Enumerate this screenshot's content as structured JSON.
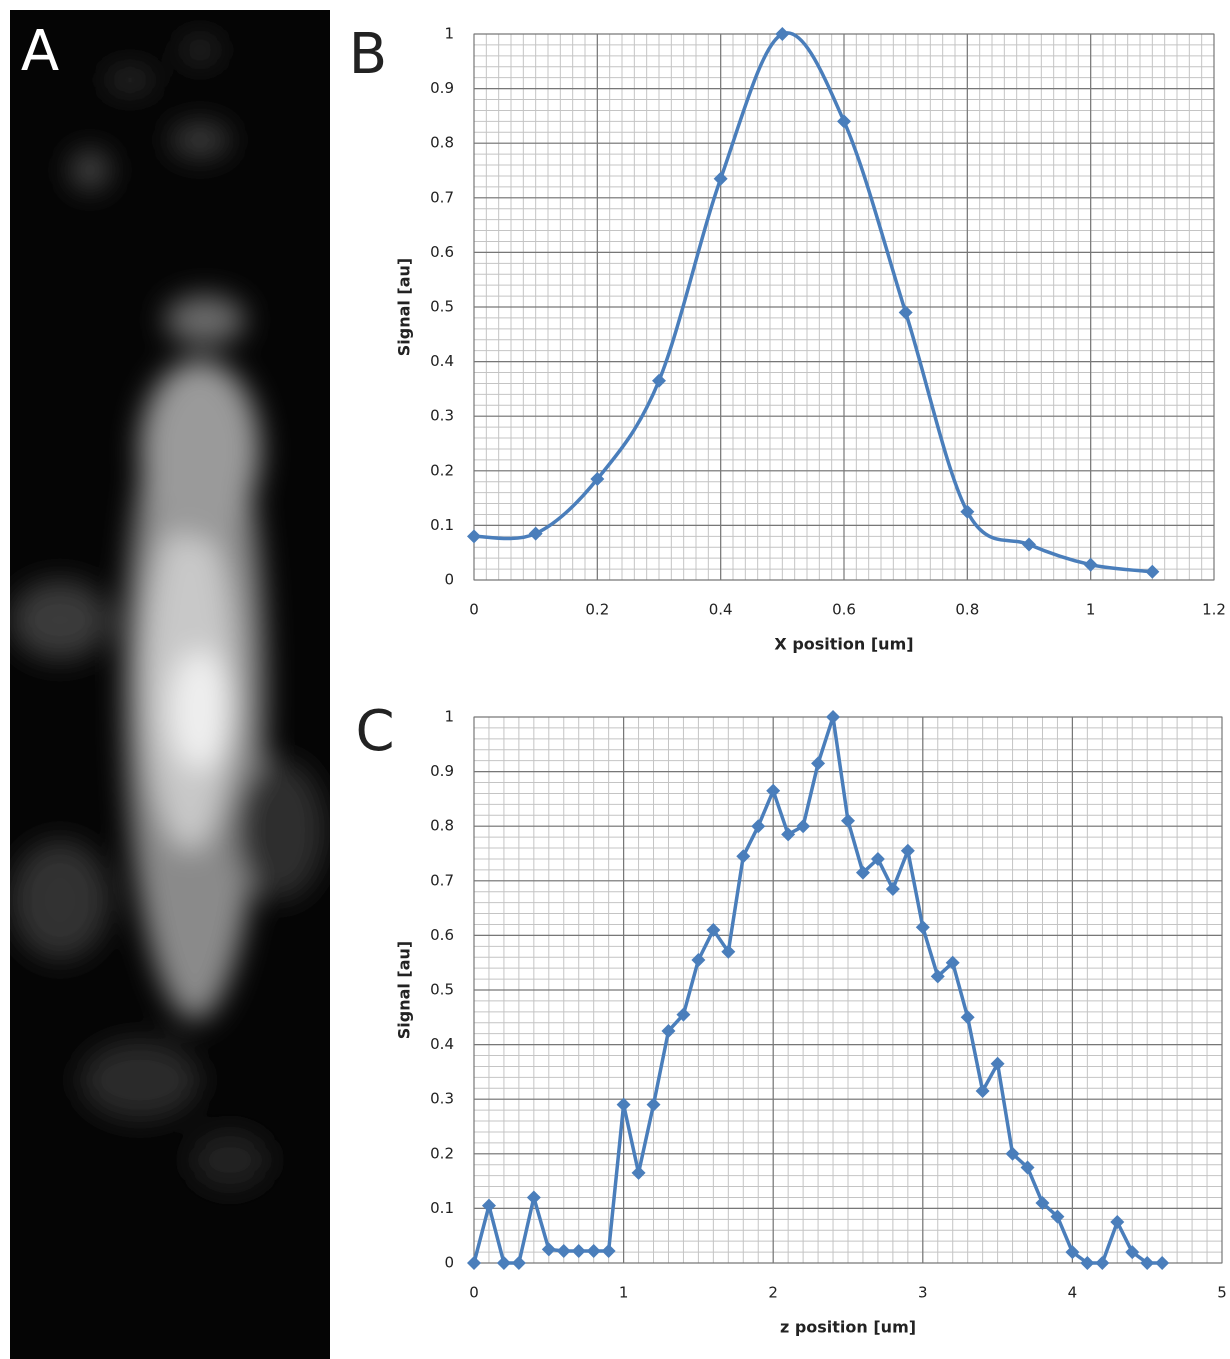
{
  "image_panel": {
    "label": "A"
  },
  "chart_data": [
    {
      "type": "line",
      "panel_label": "B",
      "smooth": true,
      "x_label": "X position [um]",
      "y_label": "Signal [au]",
      "x": [
        0,
        0.1,
        0.2,
        0.3,
        0.4,
        0.5,
        0.6,
        0.7,
        0.8,
        0.9,
        1.0,
        1.1
      ],
      "series": [
        {
          "color": "#4a7ebb",
          "values": [
            0.08,
            0.085,
            0.185,
            0.365,
            0.735,
            1.0,
            0.84,
            0.49,
            0.125,
            0.065,
            0.028,
            0.015
          ]
        }
      ],
      "xlim": [
        0,
        1.2
      ],
      "xticks": [
        0,
        0.2,
        0.4,
        0.6,
        0.8,
        1,
        1.2
      ],
      "ylim": [
        0,
        1
      ],
      "yticks": [
        0,
        0.1,
        0.2,
        0.3,
        0.4,
        0.5,
        0.6,
        0.7,
        0.8,
        0.9,
        1
      ],
      "grid": true,
      "minor_grid": {
        "xstep": 0.02,
        "ystep": 0.02
      }
    },
    {
      "type": "line",
      "panel_label": "C",
      "smooth": false,
      "x_label": "z position [um]",
      "y_label": "Signal [au]",
      "x": [
        0,
        0.1,
        0.2,
        0.3,
        0.4,
        0.5,
        0.6,
        0.7,
        0.8,
        0.9,
        1.0,
        1.1,
        1.2,
        1.3,
        1.4,
        1.5,
        1.6,
        1.7,
        1.8,
        1.9,
        2.0,
        2.1,
        2.2,
        2.3,
        2.4,
        2.5,
        2.6,
        2.7,
        2.8,
        2.9,
        3.0,
        3.1,
        3.2,
        3.3,
        3.4,
        3.5,
        3.6,
        3.7,
        3.8,
        3.9,
        4.0,
        4.1,
        4.2,
        4.3,
        4.4,
        4.5,
        4.6
      ],
      "series": [
        {
          "color": "#4a7ebb",
          "values": [
            0,
            0.105,
            0,
            0,
            0.12,
            0.025,
            0.022,
            0.022,
            0.022,
            0.022,
            0.29,
            0.165,
            0.29,
            0.425,
            0.455,
            0.555,
            0.61,
            0.57,
            0.745,
            0.8,
            0.865,
            0.785,
            0.8,
            0.915,
            1.0,
            0.81,
            0.715,
            0.74,
            0.685,
            0.755,
            0.615,
            0.525,
            0.55,
            0.45,
            0.315,
            0.365,
            0.2,
            0.175,
            0.11,
            0.085,
            0.02,
            0,
            0,
            0.075,
            0.02,
            0,
            0
          ]
        }
      ],
      "xlim": [
        0,
        5
      ],
      "xticks": [
        0,
        1,
        2,
        3,
        4,
        5
      ],
      "ylim": [
        0,
        1
      ],
      "yticks": [
        0,
        0.1,
        0.2,
        0.3,
        0.4,
        0.5,
        0.6,
        0.7,
        0.8,
        0.9,
        1
      ],
      "grid": true,
      "minor_grid": {
        "xstep": 0.1,
        "ystep": 0.02
      }
    }
  ]
}
